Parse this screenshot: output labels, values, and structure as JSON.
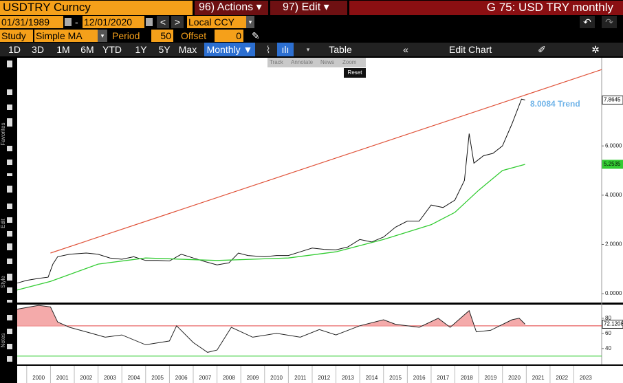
{
  "toolbar": {
    "ticker": "USDTRY Curncy",
    "actions": "96) Actions ▾",
    "edit": "97) Edit ▾",
    "title": "G 75: USD TRY monthly",
    "start_date": "01/31/1989",
    "date_sep": "-",
    "end_date": "12/01/2020",
    "currency": "Local CCY",
    "study_label": "Study",
    "study": "Simple MA",
    "period_label": "Period",
    "period": "50",
    "offset_label": "Offset",
    "offset": "0",
    "ranges": [
      "1D",
      "3D",
      "1M",
      "6M",
      "YTD",
      "1Y",
      "5Y",
      "Max"
    ],
    "frequency": "Monthly ▼",
    "table": "Table",
    "edit_chart": "Edit Chart"
  },
  "overlay_menu": {
    "items": [
      "Track",
      "Annotate",
      "News",
      "Zoom"
    ],
    "reset": "Reset"
  },
  "side_labels": [
    "Favorites",
    "Edit",
    "Style",
    "Notes"
  ],
  "chart_data": {
    "type": "line",
    "xlim": [
      1999.6,
      2024.17
    ],
    "ylim": [
      -0.36,
      9.58
    ],
    "xticks": [
      2000,
      2001,
      2002,
      2003,
      2004,
      2005,
      2006,
      2007,
      2008,
      2009,
      2010,
      2011,
      2012,
      2013,
      2014,
      2015,
      2016,
      2017,
      2018,
      2019,
      2020,
      2021,
      2022,
      2023
    ],
    "yticks": [
      {
        "value": 0,
        "label": "0.0000"
      },
      {
        "value": 2,
        "label": "2.0000"
      },
      {
        "value": 4,
        "label": "4.0000"
      },
      {
        "value": 6,
        "label": "6.0000"
      }
    ],
    "series": [
      {
        "name": "USDTRY",
        "color": "#111111",
        "x": [
          1999.6,
          2000.0,
          2000.5,
          2000.9,
          2001.1,
          2001.3,
          2001.8,
          2002.5,
          2003.0,
          2003.5,
          2004.0,
          2004.5,
          2005.0,
          2005.5,
          2006.0,
          2006.5,
          2007.0,
          2007.5,
          2008.0,
          2008.5,
          2008.9,
          2009.3,
          2010.0,
          2010.5,
          2011.0,
          2011.5,
          2012.0,
          2012.5,
          2013.0,
          2013.5,
          2014.0,
          2014.5,
          2015.0,
          2015.5,
          2016.0,
          2016.5,
          2017.0,
          2017.5,
          2018.0,
          2018.4,
          2018.6,
          2018.8,
          2019.2,
          2019.6,
          2020.0,
          2020.4,
          2020.8,
          2020.95
        ],
        "values": [
          0.43,
          0.54,
          0.62,
          0.67,
          1.2,
          1.5,
          1.6,
          1.65,
          1.6,
          1.45,
          1.4,
          1.5,
          1.35,
          1.35,
          1.33,
          1.6,
          1.45,
          1.3,
          1.17,
          1.25,
          1.65,
          1.55,
          1.5,
          1.55,
          1.55,
          1.7,
          1.85,
          1.8,
          1.78,
          1.9,
          2.2,
          2.1,
          2.3,
          2.7,
          2.95,
          2.95,
          3.6,
          3.5,
          3.8,
          4.6,
          6.5,
          5.3,
          5.6,
          5.7,
          6.0,
          6.9,
          7.9,
          7.8645
        ]
      },
      {
        "name": "SMA 50",
        "color": "#33cc33",
        "x": [
          1999.6,
          2001.0,
          2003.0,
          2005.0,
          2008.0,
          2011.0,
          2013.0,
          2015.0,
          2017.0,
          2018.0,
          2019.0,
          2020.0,
          2020.95
        ],
        "values": [
          0.15,
          0.5,
          1.2,
          1.45,
          1.35,
          1.45,
          1.7,
          2.2,
          2.8,
          3.3,
          4.2,
          5.0,
          5.2535
        ]
      }
    ],
    "trendline": {
      "x": [
        2001.0,
        2024.17
      ],
      "values": [
        1.65,
        9.1
      ],
      "color": "#e0533a",
      "label": "8.0084 Trend"
    },
    "rsi": {
      "ylim": [
        19,
        98
      ],
      "yticks": [
        40,
        60,
        80
      ],
      "levels": [
        70,
        30
      ],
      "x": [
        1999.6,
        2000.5,
        2001.0,
        2001.3,
        2001.8,
        2002.5,
        2003.3,
        2004.0,
        2005.0,
        2006.0,
        2006.3,
        2007.0,
        2007.6,
        2008.0,
        2008.6,
        2009.5,
        2010.5,
        2011.5,
        2012.3,
        2013.0,
        2014.0,
        2015.0,
        2015.5,
        2016.5,
        2017.3,
        2017.8,
        2018.6,
        2018.9,
        2019.5,
        2020.4,
        2020.7,
        2020.95
      ],
      "values": [
        92,
        97,
        95,
        75,
        68,
        62,
        55,
        58,
        45,
        50,
        70,
        48,
        35,
        38,
        68,
        55,
        60,
        55,
        65,
        58,
        70,
        78,
        72,
        68,
        80,
        68,
        90,
        62,
        64,
        78,
        80,
        72.1208
      ]
    }
  }
}
